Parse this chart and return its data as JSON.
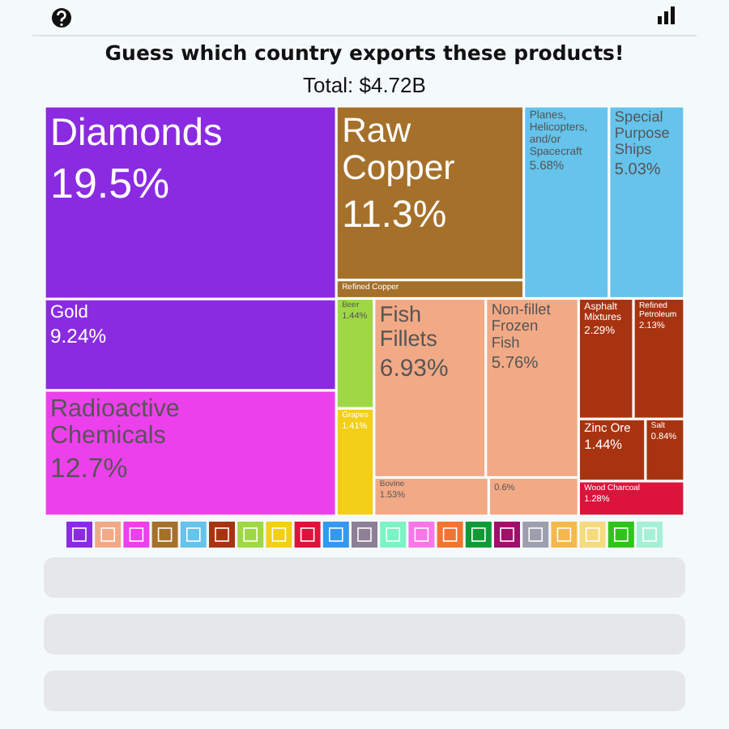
{
  "chart_data": {
    "type": "other",
    "title": "Guess which country exports these products!",
    "subtitle": "Total: $4.72B",
    "categories": [
      "Diamonds",
      "Gold",
      "Radioactive Chemicals",
      "Raw Copper",
      "Refined Copper",
      "Planes, Helicopters, and/or Spacecraft",
      "Special Purpose Ships",
      "Beer",
      "Grapes",
      "Fish Fillets",
      "Non-fillet Frozen Fish",
      "Bovine",
      null,
      "Asphalt Mixtures",
      "Refined Petroleum",
      "Zinc Ore",
      "Salt",
      "Wood Charcoal"
    ],
    "values": [
      19.5,
      9.24,
      12.7,
      11.3,
      null,
      5.68,
      5.03,
      1.44,
      1.41,
      6.93,
      5.76,
      1.53,
      null,
      2.29,
      2.13,
      1.44,
      0.84,
      1.28
    ],
    "value_labels": [
      "19.5%",
      "9.24%",
      "12.7%",
      "11.3%",
      null,
      "5.68%",
      "5.03%",
      "1.44%",
      "1.41%",
      "6.93%",
      "5.76%",
      "1.53%",
      "0.6%",
      "2.29%",
      "2.13%",
      "1.44%",
      "0.84%",
      "1.28%"
    ],
    "colors": [
      "#8a2be2",
      "#8a2be2",
      "#ed40ed",
      "#a5702a",
      "#a5702a",
      "#65c3ec",
      "#65c3ec",
      "#9fd844",
      "#f3cf17",
      "#f2a985",
      "#f2a985",
      "#f2a985",
      "#f2a985",
      "#a83310",
      "#a83310",
      "#a83310",
      "#a83310",
      "#dc143c"
    ]
  }
}
